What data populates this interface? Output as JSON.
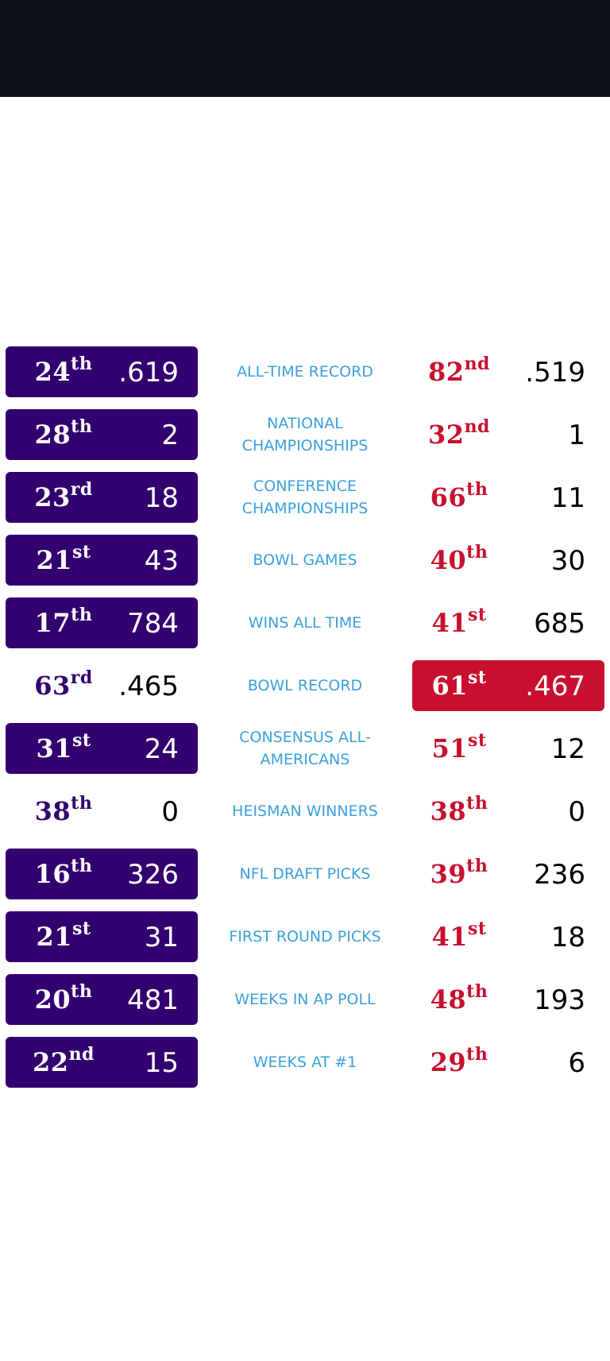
{
  "colors": {
    "header_bg": "#0c1117",
    "team_a": "#33006f",
    "team_b": "#c8102e",
    "label": "#3aa0dc"
  },
  "rows": [
    {
      "label": "ALL-TIME RECORD",
      "a_rank": "24",
      "a_suffix": "th",
      "a_value": ".619",
      "b_rank": "82",
      "b_suffix": "nd",
      "b_value": ".519",
      "winner": "a"
    },
    {
      "label": "NATIONAL CHAMPIONSHIPS",
      "a_rank": "28",
      "a_suffix": "th",
      "a_value": "2",
      "b_rank": "32",
      "b_suffix": "nd",
      "b_value": "1",
      "winner": "a"
    },
    {
      "label": "CONFERENCE CHAMPIONSHIPS",
      "a_rank": "23",
      "a_suffix": "rd",
      "a_value": "18",
      "b_rank": "66",
      "b_suffix": "th",
      "b_value": "11",
      "winner": "a"
    },
    {
      "label": "BOWL GAMES",
      "a_rank": "21",
      "a_suffix": "st",
      "a_value": "43",
      "b_rank": "40",
      "b_suffix": "th",
      "b_value": "30",
      "winner": "a"
    },
    {
      "label": "WINS ALL TIME",
      "a_rank": "17",
      "a_suffix": "th",
      "a_value": "784",
      "b_rank": "41",
      "b_suffix": "st",
      "b_value": "685",
      "winner": "a"
    },
    {
      "label": "BOWL RECORD",
      "a_rank": "63",
      "a_suffix": "rd",
      "a_value": ".465",
      "b_rank": "61",
      "b_suffix": "st",
      "b_value": ".467",
      "winner": "b"
    },
    {
      "label": "CONSENSUS ALL-AMERICANS",
      "a_rank": "31",
      "a_suffix": "st",
      "a_value": "24",
      "b_rank": "51",
      "b_suffix": "st",
      "b_value": "12",
      "winner": "a"
    },
    {
      "label": "HEISMAN WINNERS",
      "a_rank": "38",
      "a_suffix": "th",
      "a_value": "0",
      "b_rank": "38",
      "b_suffix": "th",
      "b_value": "0",
      "winner": "none"
    },
    {
      "label": "NFL DRAFT PICKS",
      "a_rank": "16",
      "a_suffix": "th",
      "a_value": "326",
      "b_rank": "39",
      "b_suffix": "th",
      "b_value": "236",
      "winner": "a"
    },
    {
      "label": "FIRST ROUND PICKS",
      "a_rank": "21",
      "a_suffix": "st",
      "a_value": "31",
      "b_rank": "41",
      "b_suffix": "st",
      "b_value": "18",
      "winner": "a"
    },
    {
      "label": "WEEKS IN AP POLL",
      "a_rank": "20",
      "a_suffix": "th",
      "a_value": "481",
      "b_rank": "48",
      "b_suffix": "th",
      "b_value": "193",
      "winner": "a"
    },
    {
      "label": "WEEKS AT #1",
      "a_rank": "22",
      "a_suffix": "nd",
      "a_value": "15",
      "b_rank": "29",
      "b_suffix": "th",
      "b_value": "6",
      "winner": "a"
    }
  ]
}
